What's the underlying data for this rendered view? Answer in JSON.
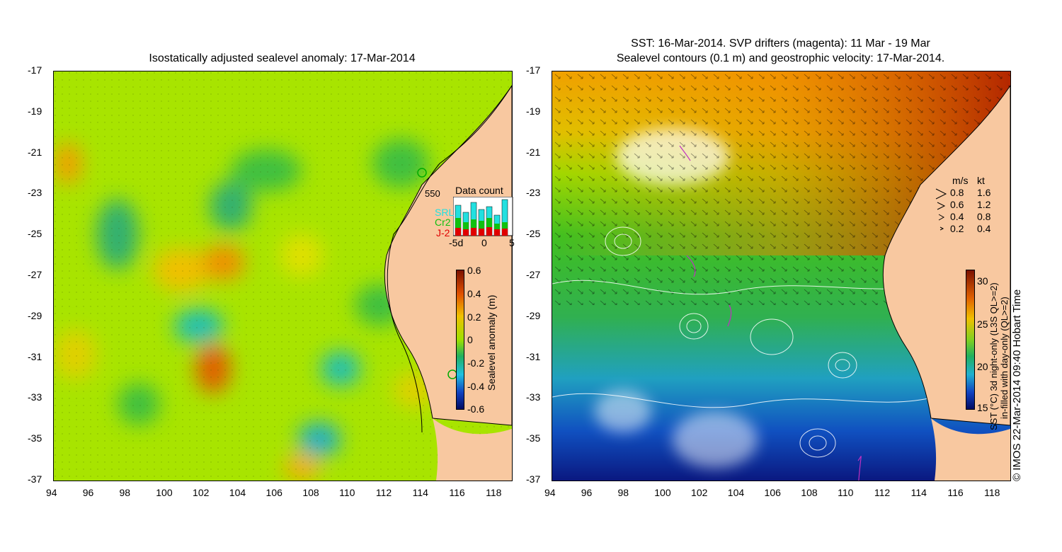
{
  "left": {
    "title": "Isostatically adjusted sealevel anomaly: 17-Mar-2014",
    "legend": {
      "count_label": "550",
      "title": "Data count",
      "missions": [
        {
          "name": "SRL",
          "color": "#22e0e0"
        },
        {
          "name": "Cr2",
          "color": "#10c010"
        },
        {
          "name": "J-2",
          "color": "#e00000"
        }
      ],
      "x_ticks": [
        "-5d",
        "0",
        "5"
      ]
    },
    "colorbar": {
      "label": "Sealevel anomaly (m)",
      "ticks": [
        "0.6",
        "0.4",
        "0.2",
        "0",
        "-0.2",
        "-0.4",
        "-0.6"
      ]
    }
  },
  "right": {
    "title_line1": "SST: 16-Mar-2014. SVP drifters (magenta): 11 Mar - 19 Mar",
    "title_line2": "Sealevel contours (0.1 m) and geostrophic velocity: 17-Mar-2014.",
    "speed_legend": {
      "header_ms": "m/s",
      "header_kt": "kt",
      "rows": [
        {
          "ms": "0.8",
          "kt": "1.6"
        },
        {
          "ms": "0.6",
          "kt": "1.2"
        },
        {
          "ms": "0.4",
          "kt": "0.8"
        },
        {
          "ms": "0.2",
          "kt": "0.4"
        }
      ]
    },
    "colorbar": {
      "label_line1": "SST (°C) 3d night-only (L3S QL>=2)",
      "label_line2": "in-filled with day-only (QL>=2)",
      "ticks": [
        "30",
        "25",
        "20",
        "15"
      ]
    },
    "credit": "© IMOS 22-Mar-2014 09:40 Hobart Time"
  },
  "axes": {
    "lat_ticks": [
      "-17",
      "-19",
      "-21",
      "-23",
      "-25",
      "-27",
      "-29",
      "-31",
      "-33",
      "-35",
      "-37"
    ],
    "lon_ticks": [
      "94",
      "96",
      "98",
      "100",
      "102",
      "104",
      "106",
      "108",
      "110",
      "112",
      "114",
      "116",
      "118"
    ]
  },
  "colors": {
    "land": "#f8c8a0",
    "sla_base": "#9ee000",
    "sst_warm": "#d04000",
    "sst_cold": "#102090"
  }
}
